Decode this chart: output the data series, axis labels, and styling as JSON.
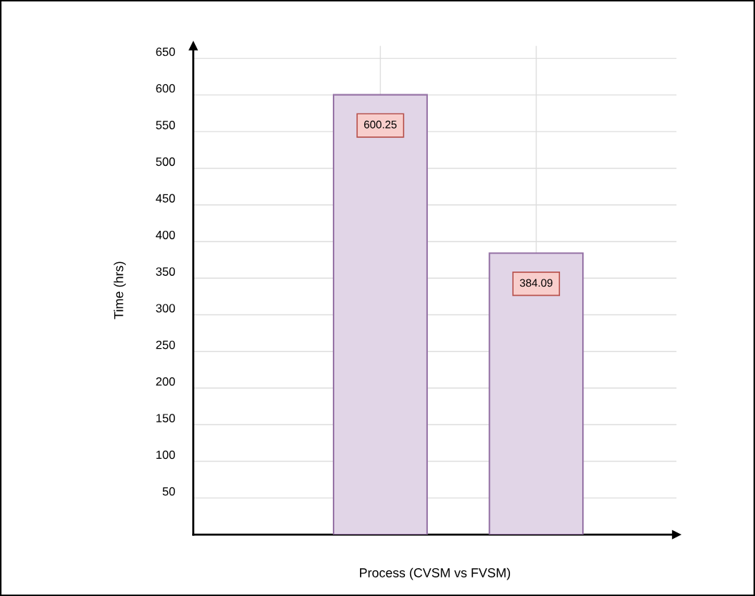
{
  "chart_data": {
    "type": "bar",
    "xlabel": "Process (CVSM vs FVSM)",
    "ylabel": "Time (hrs)",
    "categories": [
      null,
      null
    ],
    "series": [
      {
        "color": "#e1d5e7",
        "values": [
          600.25,
          384.09
        ]
      }
    ],
    "data_labels": true,
    "ylim": [
      0,
      667
    ],
    "yticks": [
      50,
      100,
      150,
      200,
      250,
      300,
      350,
      400,
      450,
      500,
      550,
      600,
      650
    ],
    "grid": true
  }
}
